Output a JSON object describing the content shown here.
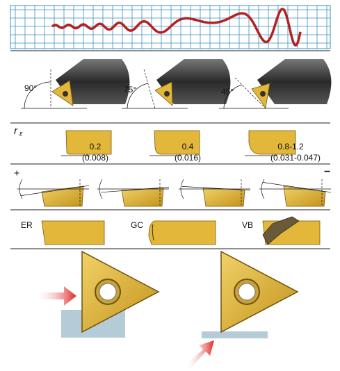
{
  "approach_angles": [
    "90°",
    "75°",
    "45°"
  ],
  "corner_radius": {
    "symbol": "r",
    "subscript": "ε",
    "items": [
      {
        "mm": "0.2",
        "inch": "(0.008)"
      },
      {
        "mm": "0.4",
        "inch": "(0.016)"
      },
      {
        "mm": "0.8-1.2",
        "inch": "(0.031-0.047)"
      }
    ]
  },
  "rake": {
    "positive": "+",
    "negative": "−"
  },
  "edge_treatments": [
    "ER",
    "GC",
    "VB"
  ]
}
